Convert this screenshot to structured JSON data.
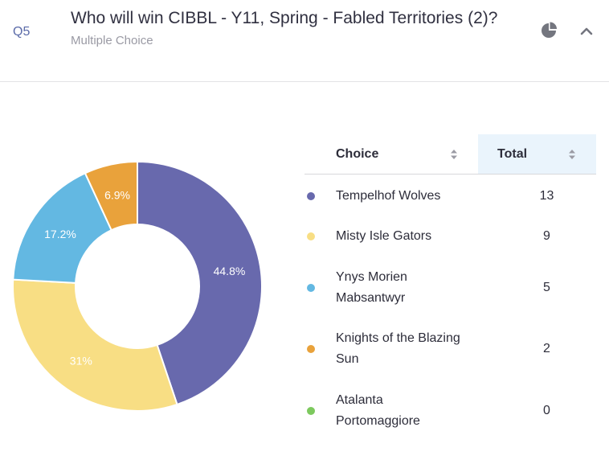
{
  "question": {
    "number": "Q5",
    "title": "Who will win CIBBL - Y11, Spring - Fabled Territories (2)?",
    "type": "Multiple Choice"
  },
  "header_icons": {
    "chart_toggle": "pie-chart-icon",
    "collapse": "chevron-up-icon"
  },
  "table": {
    "col_choice": "Choice",
    "col_total": "Total",
    "rows": [
      {
        "label": "Tempelhof Wolves",
        "total": "13",
        "color": "#6869ad"
      },
      {
        "label": "Misty Isle Gators",
        "total": "9",
        "color": "#f8de84"
      },
      {
        "label": "Ynys Morien Mabsantwyr",
        "total": "5",
        "color": "#63b8e2"
      },
      {
        "label": "Knights of the Blazing Sun",
        "total": "2",
        "color": "#e9a23b"
      },
      {
        "label": "Atalanta Portomaggiore",
        "total": "0",
        "color": "#7dc95e"
      }
    ]
  },
  "chart_data": {
    "type": "pie",
    "donut": true,
    "labels": [
      "Tempelhof Wolves",
      "Misty Isle Gators",
      "Ynys Morien Mabsantwyr",
      "Knights of the Blazing Sun",
      "Atalanta Portomaggiore"
    ],
    "values": [
      13,
      9,
      5,
      2,
      0
    ],
    "slice_labels": [
      "44.8%",
      "31%",
      "17.2%",
      "6.9%",
      ""
    ],
    "colors": [
      "#6869ad",
      "#f8de84",
      "#63b8e2",
      "#e9a23b",
      "#7dc95e"
    ]
  }
}
